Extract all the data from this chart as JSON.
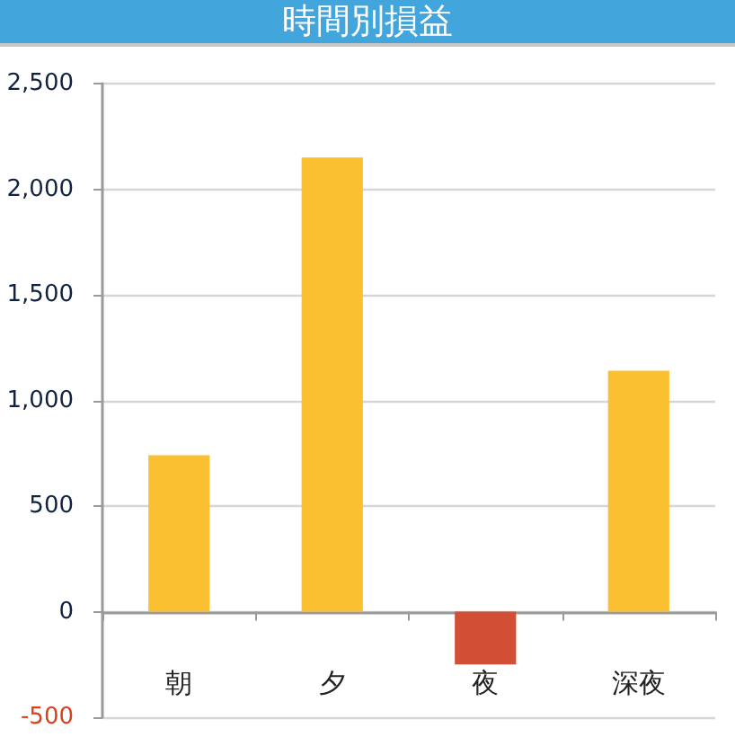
{
  "chart_data": {
    "type": "bar",
    "title": "時間別損益",
    "categories": [
      "朝",
      "夕",
      "夜",
      "深夜"
    ],
    "values": [
      740,
      2150,
      -250,
      1140
    ],
    "colors": [
      "#fbbf32",
      "#fbbf32",
      "#d24e35",
      "#fbbf32"
    ],
    "ylim": [
      -500,
      2500
    ],
    "yticks": [
      -500,
      0,
      500,
      {
        "value": 1000,
        "label": "1,000"
      },
      {
        "value": 1500,
        "label": "1,500"
      },
      {
        "value": 2000,
        "label": "2,000"
      },
      {
        "value": 2500,
        "label": "2,500"
      }
    ],
    "grid": "y"
  }
}
